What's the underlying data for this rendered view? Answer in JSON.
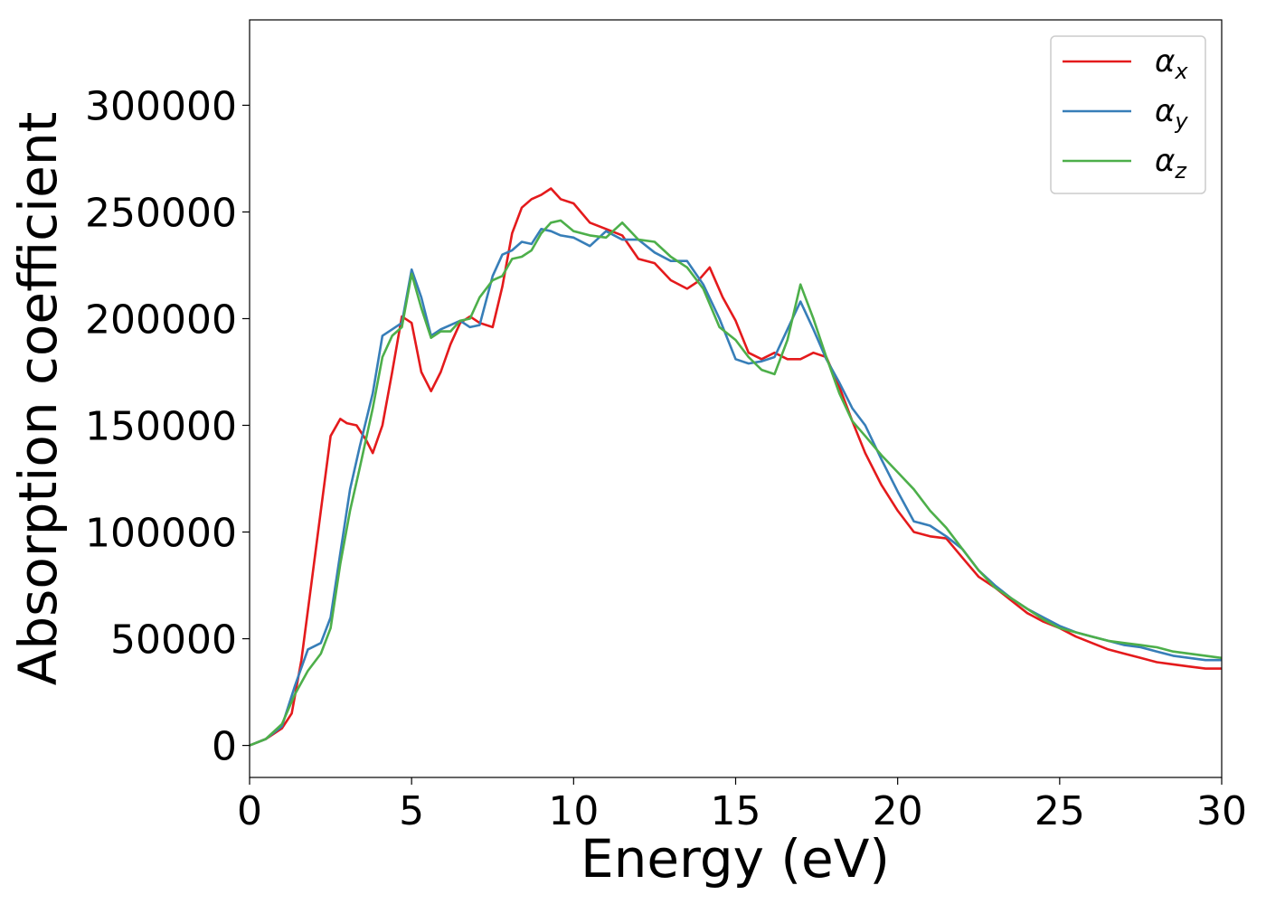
{
  "chart_data": {
    "type": "line",
    "title": "",
    "xlabel": "Energy (eV)",
    "ylabel": "Absorption coefficient",
    "xlim": [
      0,
      30
    ],
    "ylim": [
      -15000,
      340000
    ],
    "xticks": [
      0,
      5,
      10,
      15,
      20,
      25,
      30
    ],
    "xtick_labels": [
      "0",
      "5",
      "10",
      "15",
      "20",
      "25",
      "30"
    ],
    "yticks": [
      0,
      50000,
      100000,
      150000,
      200000,
      250000,
      300000
    ],
    "ytick_labels": [
      "0",
      "50000",
      "100000",
      "150000",
      "200000",
      "250000",
      "300000"
    ],
    "grid": false,
    "legend_position": "top-right",
    "series": [
      {
        "name": "α_x",
        "symbol": "α",
        "sub": "x",
        "color": "#e41a1c",
        "x": [
          0,
          0.5,
          1.0,
          1.3,
          1.6,
          1.9,
          2.2,
          2.5,
          2.8,
          3.0,
          3.3,
          3.6,
          3.8,
          4.1,
          4.4,
          4.7,
          5.0,
          5.3,
          5.6,
          5.9,
          6.2,
          6.5,
          6.8,
          7.1,
          7.5,
          7.8,
          8.1,
          8.4,
          8.7,
          9.0,
          9.3,
          9.6,
          10.0,
          10.5,
          11.0,
          11.5,
          12.0,
          12.5,
          13.0,
          13.5,
          13.8,
          14.2,
          14.6,
          15.0,
          15.4,
          15.8,
          16.2,
          16.6,
          17.0,
          17.4,
          17.8,
          18.2,
          18.6,
          19.0,
          19.5,
          20.0,
          20.5,
          21.0,
          21.5,
          22.0,
          22.5,
          23.0,
          23.5,
          24.0,
          24.5,
          25.0,
          25.5,
          26.0,
          26.5,
          27.0,
          27.5,
          28.0,
          28.5,
          29.0,
          29.5,
          30.0
        ],
        "values": [
          0,
          3000,
          8000,
          15000,
          40000,
          75000,
          110000,
          145000,
          153000,
          151000,
          150000,
          143000,
          137000,
          150000,
          175000,
          201000,
          198000,
          175000,
          166000,
          175000,
          188000,
          198000,
          201000,
          198000,
          196000,
          215000,
          240000,
          252000,
          256000,
          258000,
          261000,
          256000,
          254000,
          245000,
          242000,
          239000,
          228000,
          226000,
          218000,
          214000,
          217000,
          224000,
          210000,
          199000,
          184000,
          181000,
          184000,
          181000,
          181000,
          184000,
          182000,
          168000,
          152000,
          137000,
          122000,
          110000,
          100000,
          98000,
          97000,
          88000,
          79000,
          74000,
          68000,
          62000,
          58000,
          55000,
          51000,
          48000,
          45000,
          43000,
          41000,
          39000,
          38000,
          37000,
          36000,
          36000
        ]
      },
      {
        "name": "α_y",
        "symbol": "α",
        "sub": "y",
        "color": "#377eb8",
        "x": [
          0,
          0.5,
          1.0,
          1.4,
          1.8,
          2.2,
          2.5,
          2.8,
          3.1,
          3.4,
          3.8,
          4.1,
          4.4,
          4.7,
          5.0,
          5.3,
          5.6,
          5.9,
          6.2,
          6.5,
          6.8,
          7.1,
          7.5,
          7.8,
          8.1,
          8.4,
          8.7,
          9.0,
          9.3,
          9.6,
          10.0,
          10.5,
          11.0,
          11.5,
          12.0,
          12.5,
          13.0,
          13.5,
          14.0,
          14.5,
          15.0,
          15.4,
          15.8,
          16.2,
          16.6,
          17.0,
          17.4,
          17.8,
          18.2,
          18.6,
          19.0,
          19.5,
          20.0,
          20.5,
          21.0,
          21.5,
          22.0,
          22.5,
          23.0,
          23.5,
          24.0,
          24.5,
          25.0,
          25.5,
          26.0,
          26.5,
          27.0,
          27.5,
          28.0,
          28.5,
          29.0,
          29.5,
          30.0
        ],
        "values": [
          0,
          3000,
          9000,
          28000,
          45000,
          48000,
          60000,
          90000,
          120000,
          140000,
          165000,
          192000,
          195000,
          198000,
          223000,
          210000,
          192000,
          195000,
          197000,
          199000,
          196000,
          197000,
          220000,
          230000,
          232000,
          236000,
          235000,
          242000,
          241000,
          239000,
          238000,
          234000,
          241000,
          237000,
          237000,
          231000,
          227000,
          227000,
          216000,
          200000,
          181000,
          179000,
          180000,
          182000,
          195000,
          208000,
          195000,
          181000,
          170000,
          158000,
          150000,
          134000,
          119000,
          105000,
          103000,
          98000,
          92000,
          82000,
          75000,
          69000,
          64000,
          60000,
          56000,
          53000,
          51000,
          49000,
          47000,
          46000,
          44000,
          42000,
          41000,
          40000,
          40000
        ]
      },
      {
        "name": "α_z",
        "symbol": "α",
        "sub": "z",
        "color": "#4daf4a",
        "x": [
          0,
          0.5,
          1.0,
          1.4,
          1.8,
          2.2,
          2.5,
          2.8,
          3.1,
          3.4,
          3.8,
          4.1,
          4.4,
          4.7,
          5.0,
          5.3,
          5.6,
          5.9,
          6.2,
          6.5,
          6.8,
          7.1,
          7.5,
          7.8,
          8.1,
          8.4,
          8.7,
          9.0,
          9.3,
          9.6,
          10.0,
          10.5,
          11.0,
          11.5,
          12.0,
          12.5,
          13.0,
          13.5,
          14.0,
          14.5,
          15.0,
          15.4,
          15.8,
          16.2,
          16.6,
          17.0,
          17.4,
          17.8,
          18.2,
          18.6,
          19.0,
          19.5,
          20.0,
          20.5,
          21.0,
          21.5,
          22.0,
          22.5,
          23.0,
          23.5,
          24.0,
          24.5,
          25.0,
          25.5,
          26.0,
          26.5,
          27.0,
          27.5,
          28.0,
          28.5,
          29.0,
          29.5,
          30.0
        ],
        "values": [
          0,
          3000,
          10000,
          24000,
          35000,
          43000,
          55000,
          85000,
          110000,
          130000,
          158000,
          182000,
          192000,
          196000,
          221000,
          205000,
          191000,
          194000,
          194000,
          199000,
          200000,
          210000,
          218000,
          220000,
          228000,
          229000,
          232000,
          240000,
          245000,
          246000,
          241000,
          239000,
          238000,
          245000,
          237000,
          236000,
          229000,
          224000,
          214000,
          196000,
          190000,
          182000,
          176000,
          174000,
          190000,
          216000,
          200000,
          182000,
          165000,
          152000,
          145000,
          136000,
          128000,
          120000,
          110000,
          102000,
          92000,
          82000,
          74000,
          69000,
          64000,
          59000,
          55000,
          53000,
          51000,
          49000,
          48000,
          47000,
          46000,
          44000,
          43000,
          42000,
          41000
        ]
      }
    ]
  }
}
